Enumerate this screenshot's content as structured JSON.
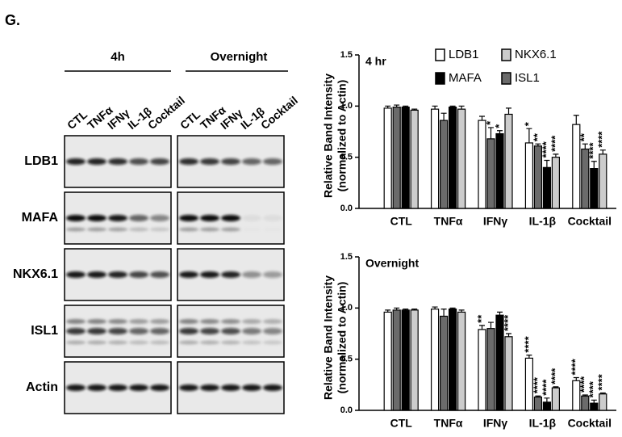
{
  "panel_label": "G.",
  "blot": {
    "groups": [
      "4h",
      "Overnight"
    ],
    "lanes": [
      "CTL",
      "TNFα",
      "IFNγ",
      "IL-1β",
      "Cocktail"
    ],
    "rows": [
      "LDB1",
      "MAFA",
      "NKX6.1",
      "ISL1",
      "Actin"
    ]
  },
  "chart_data": [
    {
      "type": "bar",
      "title": "4 hr",
      "ylabel": [
        "Relative Band Intensity",
        "(normalized to Actin)"
      ],
      "categories": [
        "CTL",
        "TNFα",
        "IFNγ",
        "IL-1β",
        "Cocktail"
      ],
      "series": [
        {
          "name": "LDB1",
          "color": "#ffffff",
          "values": [
            0.98,
            0.97,
            0.86,
            0.64,
            0.82
          ],
          "errors": [
            0.02,
            0.03,
            0.04,
            0.14,
            0.09
          ],
          "significance": [
            null,
            null,
            null,
            "*",
            null
          ]
        },
        {
          "name": "ISL1",
          "color": "#6b6b6b",
          "values": [
            0.99,
            0.86,
            0.68,
            0.61,
            0.58
          ],
          "errors": [
            0.02,
            0.07,
            0.11,
            0.02,
            0.05
          ],
          "significance": [
            null,
            null,
            "*",
            "**",
            "**"
          ]
        },
        {
          "name": "MAFA",
          "color": "#000000",
          "values": [
            0.99,
            0.99,
            0.73,
            0.4,
            0.39
          ],
          "errors": [
            0.01,
            0.01,
            0.03,
            0.07,
            0.07
          ],
          "significance": [
            null,
            null,
            "*",
            "****",
            "****"
          ]
        },
        {
          "name": "NKX6.1",
          "color": "#cccccc",
          "values": [
            0.96,
            0.97,
            0.92,
            0.5,
            0.53
          ],
          "errors": [
            0.01,
            0.03,
            0.06,
            0.03,
            0.04
          ],
          "significance": [
            null,
            null,
            null,
            "****",
            "****"
          ]
        }
      ],
      "ylim": [
        0,
        1.5
      ],
      "yticks": [
        {
          "value": 0,
          "label": "0.0"
        },
        0.5,
        {
          "value": 1,
          "label": "1.0"
        },
        1.5
      ],
      "legend": true
    },
    {
      "type": "bar",
      "title": "Overnight",
      "ylabel": [
        "Relative Band Intensity",
        "(normalized to Actin)"
      ],
      "categories": [
        "CTL",
        "TNFα",
        "IFNγ",
        "IL-1β",
        "Cocktail"
      ],
      "series": [
        {
          "name": "LDB1",
          "color": "#ffffff",
          "values": [
            0.96,
            0.99,
            0.79,
            0.51,
            0.29
          ],
          "errors": [
            0.02,
            0.02,
            0.04,
            0.03,
            0.03
          ],
          "significance": [
            null,
            null,
            "**",
            "****",
            "****"
          ]
        },
        {
          "name": "ISL1",
          "color": "#6b6b6b",
          "values": [
            0.98,
            0.92,
            0.8,
            0.13,
            0.14
          ],
          "errors": [
            0.02,
            0.07,
            0.06,
            0.01,
            0.01
          ],
          "significance": [
            null,
            null,
            null,
            "****",
            "****"
          ]
        },
        {
          "name": "MAFA",
          "color": "#000000",
          "values": [
            0.98,
            0.99,
            0.93,
            0.08,
            0.07
          ],
          "errors": [
            0.01,
            0.01,
            0.03,
            0.04,
            0.03
          ],
          "significance": [
            null,
            null,
            null,
            "****",
            "****"
          ]
        },
        {
          "name": "NKX6.1",
          "color": "#cccccc",
          "values": [
            0.98,
            0.96,
            0.72,
            0.22,
            0.16
          ],
          "errors": [
            0.01,
            0.02,
            0.03,
            0.01,
            0.01
          ],
          "significance": [
            null,
            null,
            "****",
            "****",
            "****"
          ]
        }
      ],
      "ylim": [
        0,
        1.5
      ],
      "yticks": [
        {
          "value": 0,
          "label": "0.0"
        },
        0.5,
        {
          "value": 1,
          "label": "1.0"
        },
        1.5
      ],
      "legend": false
    }
  ]
}
